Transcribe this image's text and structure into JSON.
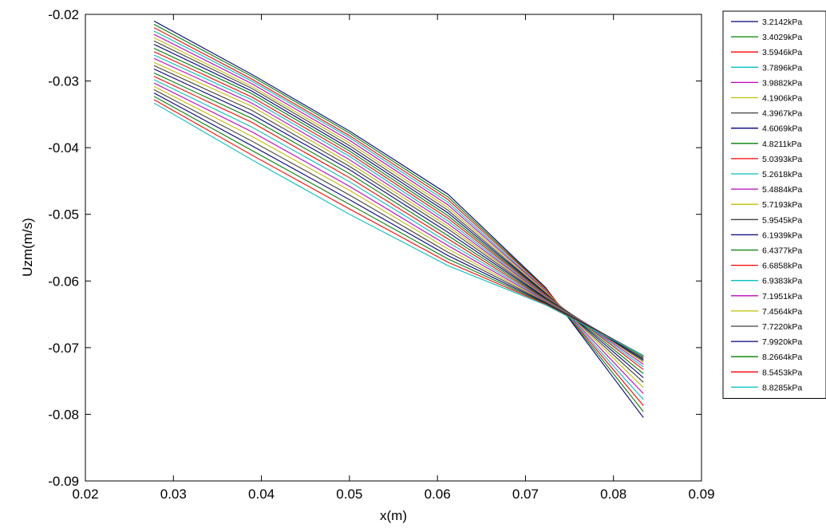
{
  "chart_data": {
    "type": "line",
    "title": "",
    "xlabel": "x(m)",
    "ylabel": "Uzm(m/s)",
    "xlim": [
      0.02,
      0.09
    ],
    "ylim": [
      -0.09,
      -0.02
    ],
    "xticks": [
      "0.02",
      "0.03",
      "0.04",
      "0.05",
      "0.06",
      "0.07",
      "0.08",
      "0.09"
    ],
    "yticks": [
      "-0.02",
      "-0.03",
      "-0.04",
      "-0.05",
      "-0.06",
      "-0.07",
      "-0.08",
      "-0.09"
    ],
    "grid": false,
    "legend_position": "outside-right",
    "x": [
      0.0278,
      0.0389,
      0.05,
      0.0612,
      0.0723,
      0.0834
    ],
    "series": [
      {
        "name": "3.2142kPa",
        "color": "#000080",
        "values": [
          -0.021,
          -0.029,
          -0.0375,
          -0.047,
          -0.061,
          -0.0805
        ]
      },
      {
        "name": "3.4029kPa",
        "color": "#008000",
        "values": [
          -0.0215,
          -0.0293,
          -0.0378,
          -0.0474,
          -0.0611,
          -0.0796
        ]
      },
      {
        "name": "3.5946kPa",
        "color": "#ff0000",
        "values": [
          -0.022,
          -0.0297,
          -0.0382,
          -0.0478,
          -0.0612,
          -0.0787
        ]
      },
      {
        "name": "3.7896kPa",
        "color": "#00bfbf",
        "values": [
          -0.0225,
          -0.03,
          -0.0385,
          -0.0482,
          -0.0614,
          -0.0778
        ]
      },
      {
        "name": "3.9882kPa",
        "color": "#bf00bf",
        "values": [
          -0.023,
          -0.0304,
          -0.0389,
          -0.0486,
          -0.0615,
          -0.0769
        ]
      },
      {
        "name": "4.1906kPa",
        "color": "#bfbf00",
        "values": [
          -0.0235,
          -0.0308,
          -0.0393,
          -0.049,
          -0.0616,
          -0.076
        ]
      },
      {
        "name": "4.3967kPa",
        "color": "#404040",
        "values": [
          -0.024,
          -0.0311,
          -0.0397,
          -0.0494,
          -0.0618,
          -0.0752
        ]
      },
      {
        "name": "4.6069kPa",
        "color": "#000080",
        "values": [
          -0.0245,
          -0.0315,
          -0.0401,
          -0.0498,
          -0.0619,
          -0.0745
        ]
      },
      {
        "name": "4.8211kPa",
        "color": "#008000",
        "values": [
          -0.0251,
          -0.0319,
          -0.0405,
          -0.0502,
          -0.062,
          -0.0739
        ]
      },
      {
        "name": "5.0393kPa",
        "color": "#ff0000",
        "values": [
          -0.0256,
          -0.0324,
          -0.0409,
          -0.0506,
          -0.0621,
          -0.0733
        ]
      },
      {
        "name": "5.2618kPa",
        "color": "#00bfbf",
        "values": [
          -0.0261,
          -0.0328,
          -0.0413,
          -0.051,
          -0.0622,
          -0.0729
        ]
      },
      {
        "name": "5.4884kPa",
        "color": "#bf00bf",
        "values": [
          -0.0266,
          -0.0333,
          -0.0418,
          -0.0514,
          -0.0623,
          -0.0725
        ]
      },
      {
        "name": "5.7193kPa",
        "color": "#bfbf00",
        "values": [
          -0.0272,
          -0.0338,
          -0.0423,
          -0.0518,
          -0.0624,
          -0.0722
        ]
      },
      {
        "name": "5.9545kPa",
        "color": "#404040",
        "values": [
          -0.0277,
          -0.0344,
          -0.0428,
          -0.0522,
          -0.0625,
          -0.072
        ]
      },
      {
        "name": "6.1939kPa",
        "color": "#000080",
        "values": [
          -0.0282,
          -0.035,
          -0.0433,
          -0.0527,
          -0.0626,
          -0.0718
        ]
      },
      {
        "name": "6.4377kPa",
        "color": "#008000",
        "values": [
          -0.0288,
          -0.0356,
          -0.0439,
          -0.0532,
          -0.0627,
          -0.0716
        ]
      },
      {
        "name": "6.6858kPa",
        "color": "#ff0000",
        "values": [
          -0.0293,
          -0.0362,
          -0.0445,
          -0.0537,
          -0.0628,
          -0.0715
        ]
      },
      {
        "name": "6.9383kPa",
        "color": "#00bfbf",
        "values": [
          -0.0298,
          -0.0369,
          -0.0451,
          -0.0542,
          -0.0629,
          -0.0714
        ]
      },
      {
        "name": "7.1951kPa",
        "color": "#bf00bf",
        "values": [
          -0.0303,
          -0.0376,
          -0.0458,
          -0.0547,
          -0.063,
          -0.0713
        ]
      },
      {
        "name": "7.4564kPa",
        "color": "#bfbf00",
        "values": [
          -0.0308,
          -0.0383,
          -0.0464,
          -0.0552,
          -0.0631,
          -0.0713
        ]
      },
      {
        "name": "7.7220kPa",
        "color": "#404040",
        "values": [
          -0.0313,
          -0.039,
          -0.0471,
          -0.0557,
          -0.0632,
          -0.0712
        ]
      },
      {
        "name": "7.9920kPa",
        "color": "#000080",
        "values": [
          -0.0318,
          -0.0397,
          -0.0478,
          -0.0562,
          -0.0633,
          -0.0712
        ]
      },
      {
        "name": "8.2664kPa",
        "color": "#008000",
        "values": [
          -0.0323,
          -0.0404,
          -0.0485,
          -0.0567,
          -0.0634,
          -0.0712
        ]
      },
      {
        "name": "8.5453kPa",
        "color": "#ff0000",
        "values": [
          -0.0328,
          -0.0411,
          -0.0492,
          -0.0572,
          -0.0635,
          -0.0712
        ]
      },
      {
        "name": "8.8285kPa",
        "color": "#00bfbf",
        "values": [
          -0.0333,
          -0.0418,
          -0.05,
          -0.0577,
          -0.0636,
          -0.0712
        ]
      }
    ]
  }
}
